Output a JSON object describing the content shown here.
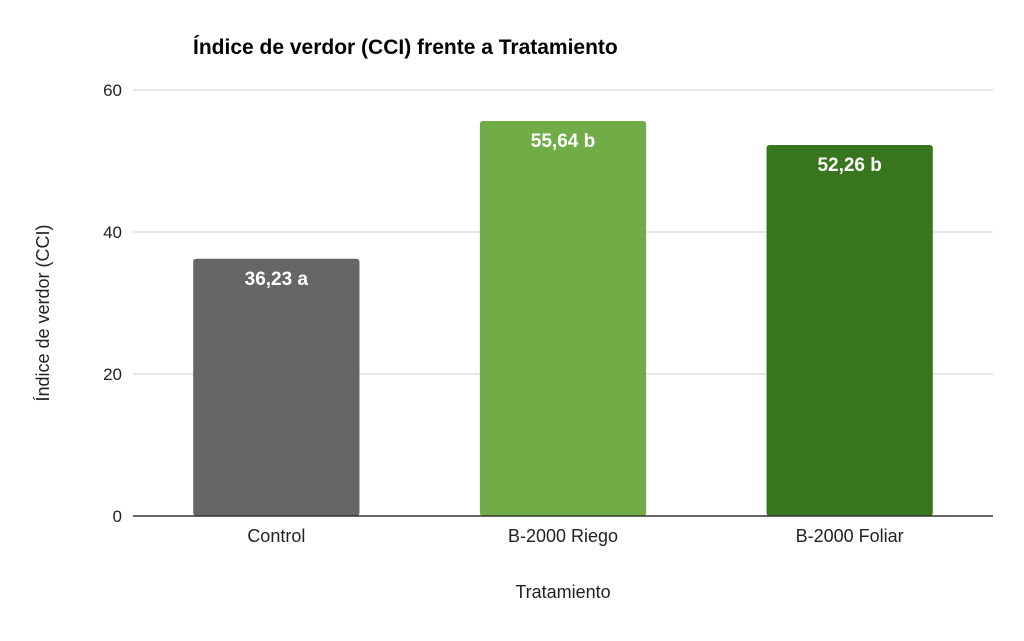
{
  "chart_data": {
    "type": "bar",
    "title": "Índice de verdor (CCI) frente a Tratamiento",
    "xlabel": "Tratamiento",
    "ylabel": "Índice de verdor (CCI)",
    "categories": [
      "Control",
      "B-2000 Riego",
      "B-2000 Foliar"
    ],
    "values": [
      36.23,
      55.64,
      52.26
    ],
    "data_labels": [
      "36,23 a",
      "55,64 b",
      "52,26 b"
    ],
    "colors": [
      "#666666",
      "#70ad47",
      "#38761d"
    ],
    "ylim": [
      0,
      60
    ],
    "yticks": [
      "0",
      "20",
      "40",
      "60"
    ],
    "ytick_values": [
      0,
      20,
      40,
      60
    ],
    "grid": true,
    "legend": "none"
  }
}
